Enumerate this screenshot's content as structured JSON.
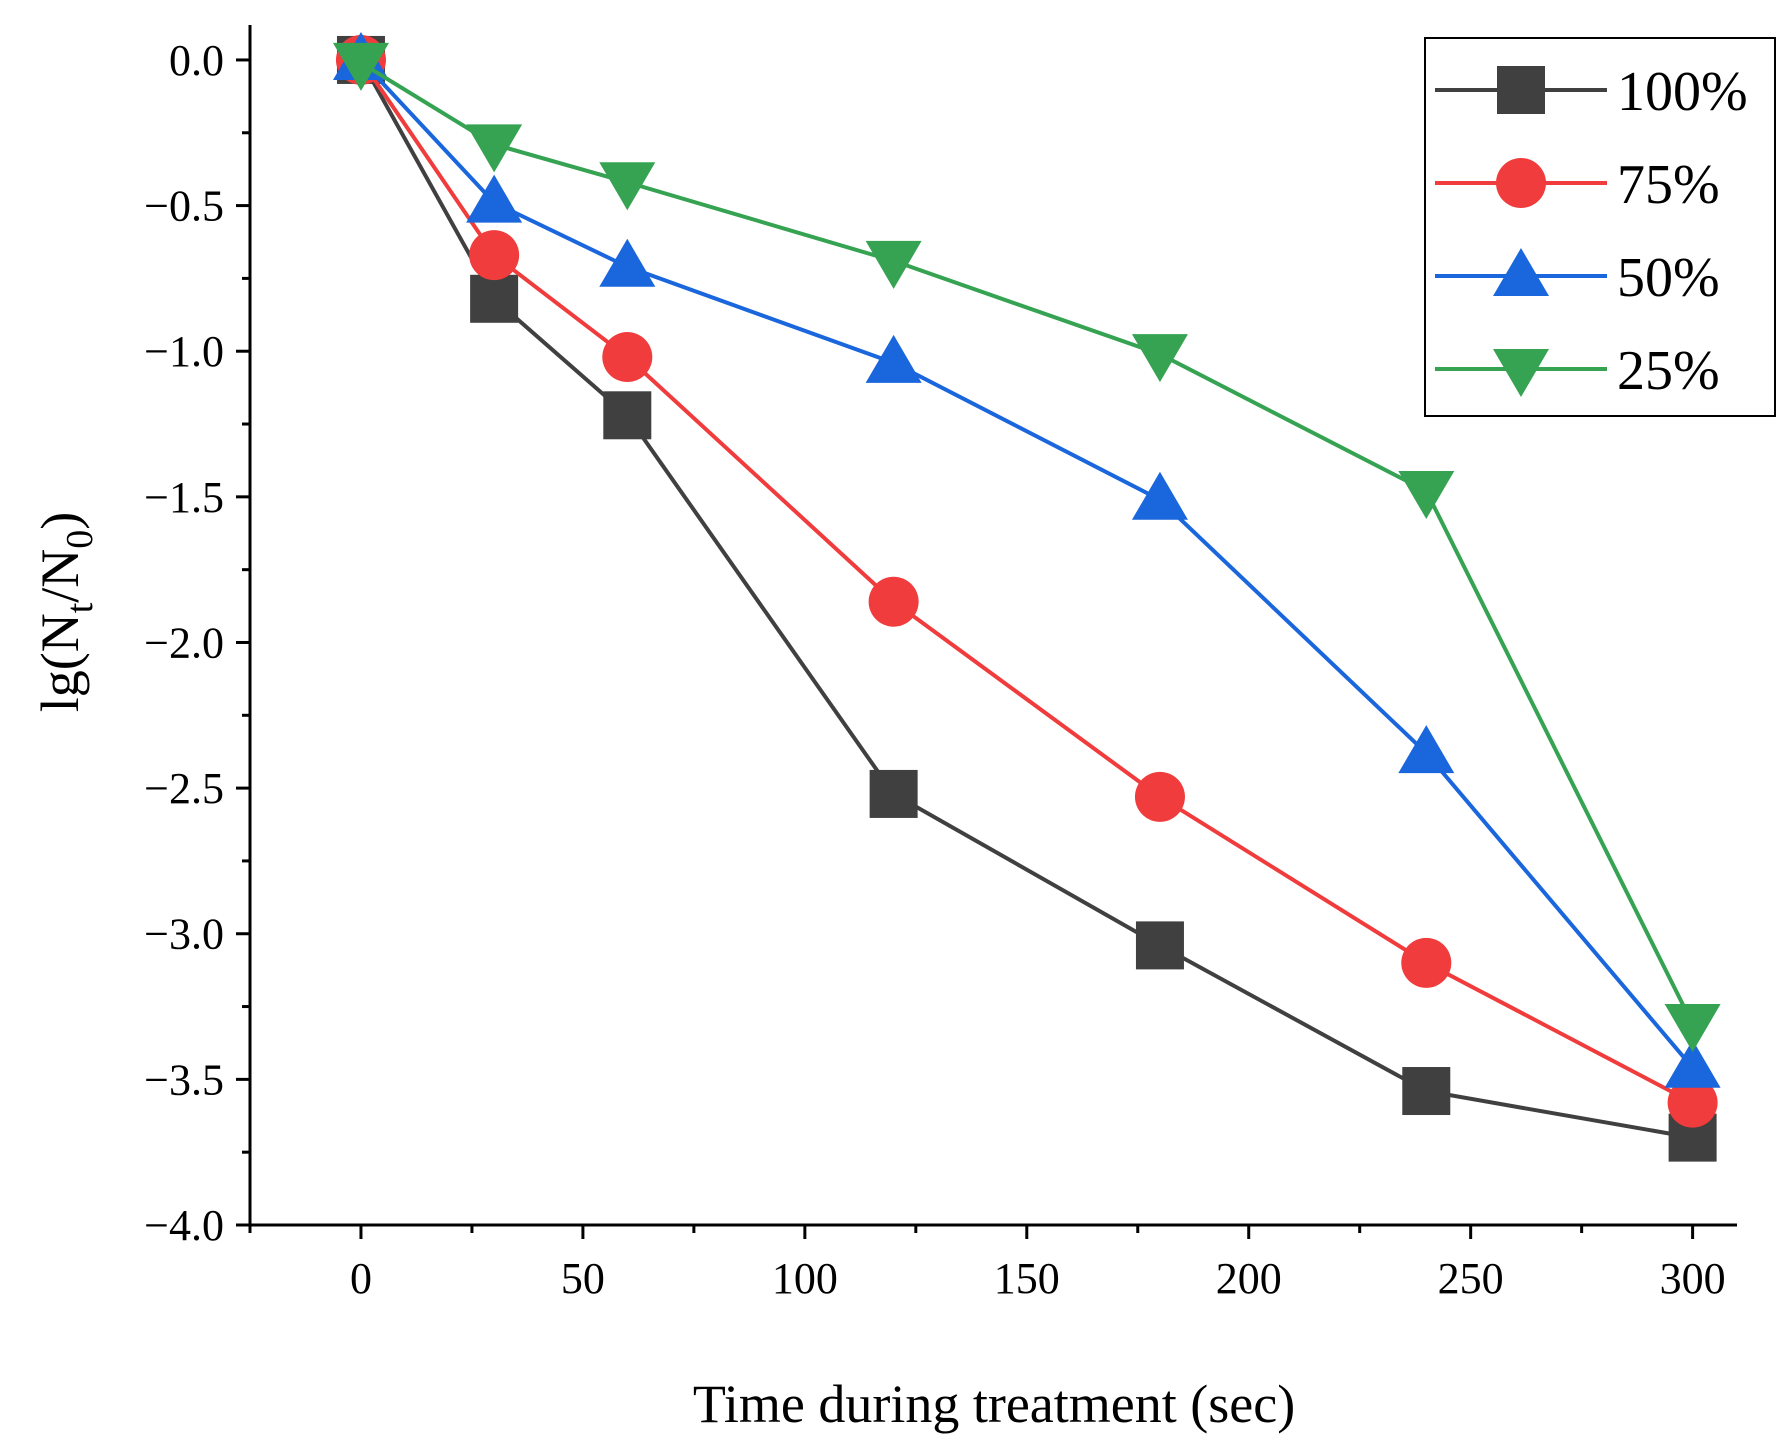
{
  "chart_data": {
    "type": "line",
    "title": "",
    "xlabel": "Time during treatment (sec)",
    "ylabel": {
      "main": "lg(N",
      "sub1": "t",
      "mid": "/N",
      "sub2": "0",
      "end": ")"
    },
    "xlim": [
      -25,
      310
    ],
    "ylim": [
      -4.0,
      0.12
    ],
    "xticks": [
      0,
      50,
      100,
      150,
      200,
      250,
      300
    ],
    "xtick_labels": [
      "0",
      "50",
      "100",
      "150",
      "200",
      "250",
      "300"
    ],
    "yticks": [
      0.0,
      -0.5,
      -1.0,
      -1.5,
      -2.0,
      -2.5,
      -3.0,
      -3.5,
      -4.0
    ],
    "ytick_labels": [
      "0.0",
      "−0.5",
      "−1.0",
      "−1.5",
      "−2.0",
      "−2.5",
      "−3.0",
      "−3.5",
      "−4.0"
    ],
    "grid": false,
    "legend_position": "top-right",
    "x": [
      0,
      30,
      60,
      120,
      180,
      240,
      300
    ],
    "series": [
      {
        "name": "100%",
        "color": "#404040",
        "marker": "square",
        "values": [
          0.0,
          -0.82,
          -1.22,
          -2.52,
          -3.04,
          -3.54,
          -3.7
        ]
      },
      {
        "name": "75%",
        "color": "#f03c3c",
        "marker": "circle",
        "values": [
          0.0,
          -0.67,
          -1.02,
          -1.86,
          -2.53,
          -3.1,
          -3.58
        ]
      },
      {
        "name": "50%",
        "color": "#1a66dc",
        "marker": "triangle-up",
        "values": [
          0.0,
          -0.49,
          -0.71,
          -1.04,
          -1.51,
          -2.38,
          -3.46
        ]
      },
      {
        "name": "25%",
        "color": "#36a353",
        "marker": "triangle-down",
        "values": [
          -0.01,
          -0.29,
          -0.42,
          -0.69,
          -1.01,
          -1.48,
          -3.31
        ]
      }
    ]
  }
}
